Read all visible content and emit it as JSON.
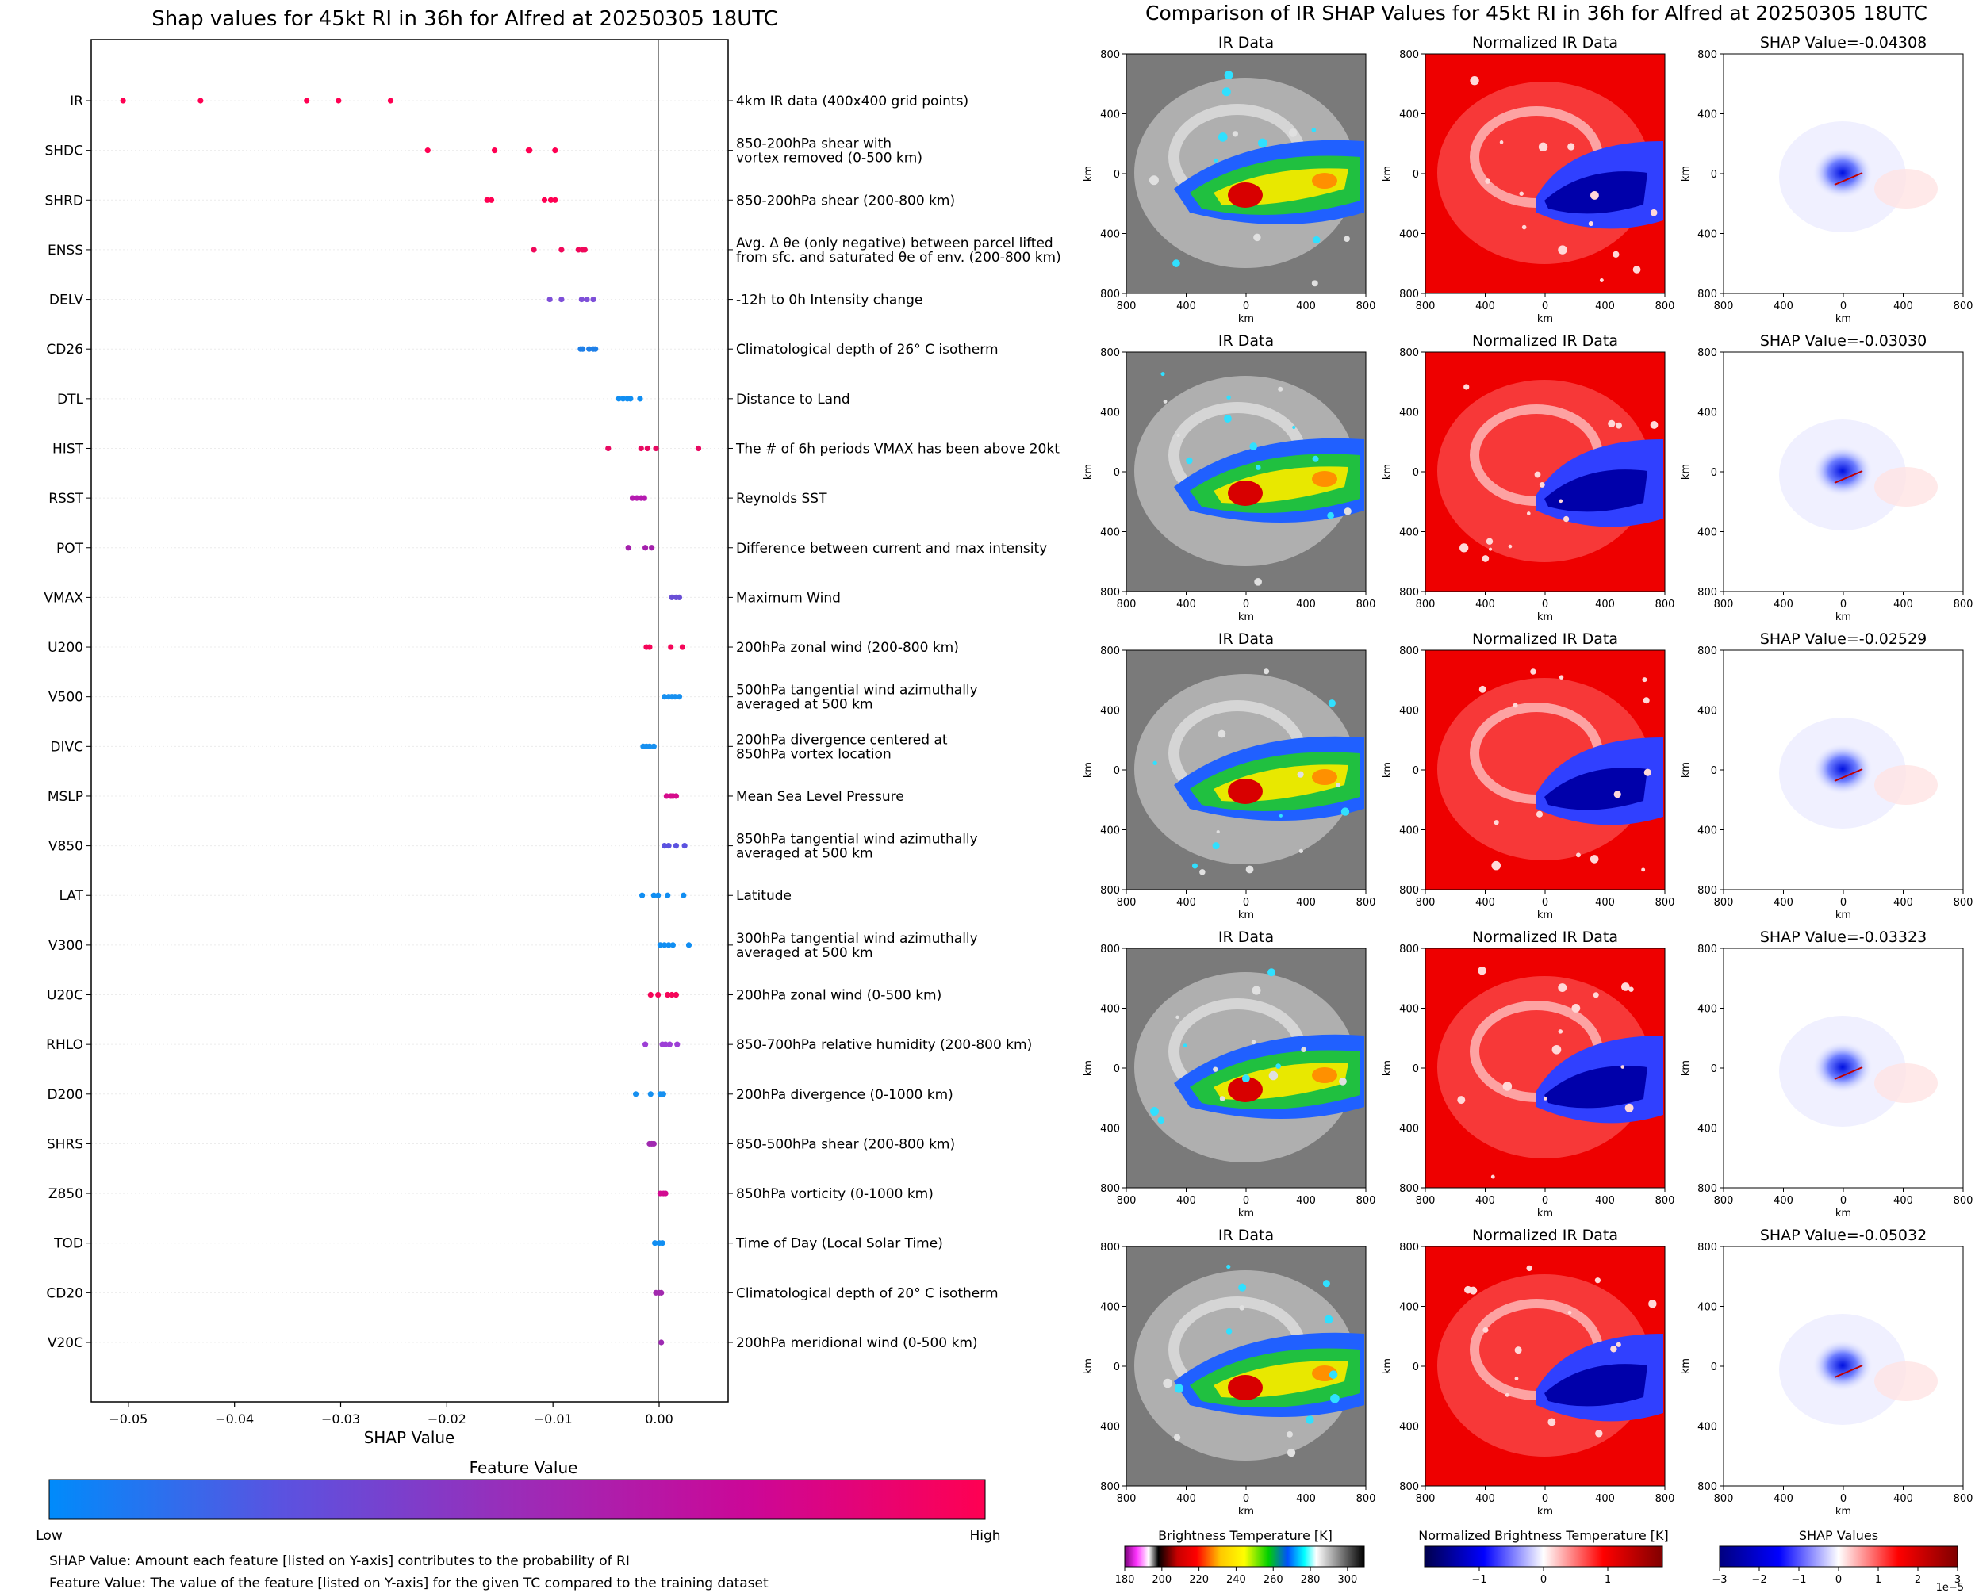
{
  "left_panel": {
    "title": "Shap values for 45kt RI in 36h for Alfred at 20250305 18UTC",
    "xlabel": "SHAP Value",
    "colorbar": {
      "title": "Feature Value",
      "low_label": "Low",
      "high_label": "High",
      "colors": [
        "#008bfb",
        "#5b52e0",
        "#9b2cb8",
        "#cc0797",
        "#ff0052"
      ]
    },
    "footnotes": [
      "SHAP Value: Amount each feature [listed on Y-axis] contributes to the probability of RI",
      "Feature Value: The value of the feature [listed on Y-axis] for the given TC compared to the training dataset"
    ]
  },
  "right_panel": {
    "title": "Comparison of IR SHAP Values for 45kt RI in 36h for Alfred at 20250305 18UTC",
    "col_titles": [
      "IR Data",
      "Normalized IR Data"
    ],
    "shap_title_prefix": "SHAP Value=",
    "shap_values": [
      "-0.04308",
      "-0.03030",
      "-0.02529",
      "-0.03323",
      "-0.05032"
    ],
    "axis_label": "km",
    "tick_labels": [
      "800",
      "400",
      "0",
      "400",
      "800"
    ],
    "colorbars": [
      {
        "title": "Brightness Temperature [K]",
        "ticks": [
          "180",
          "200",
          "220",
          "240",
          "260",
          "280",
          "300"
        ]
      },
      {
        "title": "Normalized Brightness Temperature [K]",
        "ticks": [
          "−1",
          "0",
          "1"
        ]
      },
      {
        "title": "SHAP Values",
        "ticks": [
          "−3",
          "−2",
          "−1",
          "0",
          "1",
          "2",
          "3"
        ],
        "exponent": "1e−5"
      }
    ]
  },
  "chart_data": {
    "type": "scatter",
    "subtype": "beeswarm",
    "title": "Shap values for 45kt RI in 36h for Alfred at 20250305 18UTC",
    "xlabel": "SHAP Value",
    "xlim": [
      -0.0535,
      0.0065
    ],
    "xticks": [
      -0.05,
      -0.04,
      -0.03,
      -0.02,
      -0.01,
      0.0
    ],
    "xtick_labels": [
      "−0.05",
      "−0.04",
      "−0.03",
      "−0.02",
      "−0.01",
      "0.00"
    ],
    "features": [
      {
        "name": "IR",
        "desc": [
          "4km IR data (400x400 grid points)"
        ],
        "color": "#ff0052",
        "values": [
          -0.0505,
          -0.0432,
          -0.0332,
          -0.0302,
          -0.0253
        ]
      },
      {
        "name": "SHDC",
        "desc": [
          "850-200hPa shear with",
          "vortex removed (0-500 km)"
        ],
        "color": "#ff0052",
        "values": [
          -0.0218,
          -0.0155,
          -0.0123,
          -0.0122,
          -0.0098
        ]
      },
      {
        "name": "SHRD",
        "desc": [
          "850-200hPa shear (200-800 km)"
        ],
        "color": "#ff0052",
        "values": [
          -0.0162,
          -0.0158,
          -0.0108,
          -0.0102,
          -0.0098
        ]
      },
      {
        "name": "ENSS",
        "desc": [
          "Avg. Δ θe (only negative) between parcel lifted",
          "from sfc. and saturated θe of env. (200-800 km)"
        ],
        "color": "#f0085a",
        "values": [
          -0.0118,
          -0.0092,
          -0.0076,
          -0.0072,
          -0.007
        ]
      },
      {
        "name": "DELV",
        "desc": [
          "-12h to 0h Intensity change"
        ],
        "color": "#7e4fd8",
        "values": [
          -0.0103,
          -0.0092,
          -0.0073,
          -0.0068,
          -0.0062
        ]
      },
      {
        "name": "CD26",
        "desc": [
          "Climatological depth of 26° C isotherm"
        ],
        "color": "#1e7fe8",
        "values": [
          -0.0074,
          -0.0072,
          -0.0066,
          -0.0062,
          -0.006
        ]
      },
      {
        "name": "DTL",
        "desc": [
          "Distance to Land"
        ],
        "color": "#118ef2",
        "values": [
          -0.0038,
          -0.0034,
          -0.003,
          -0.0027,
          -0.0018
        ]
      },
      {
        "name": "HIST",
        "desc": [
          "The # of 6h periods VMAX has been above 20kt"
        ],
        "color": "#e80a62",
        "values": [
          -0.0048,
          -0.0017,
          -0.0011,
          -0.0003,
          0.0037
        ]
      },
      {
        "name": "RSST",
        "desc": [
          "Reynolds SST"
        ],
        "color": "#b51ab0",
        "values": [
          -0.0025,
          -0.0021,
          -0.0017,
          -0.0014
        ]
      },
      {
        "name": "POT",
        "desc": [
          "Difference between current and max intensity"
        ],
        "color": "#a420ac",
        "values": [
          -0.0029,
          -0.0013,
          -0.0007
        ]
      },
      {
        "name": "VMAX",
        "desc": [
          "Maximum Wind"
        ],
        "color": "#6a4fd6",
        "values": [
          0.0012,
          0.0016,
          0.0019
        ]
      },
      {
        "name": "U200",
        "desc": [
          "200hPa zonal wind (200-800 km)"
        ],
        "color": "#f50659",
        "values": [
          -0.0012,
          -0.0009,
          0.0011,
          0.0022
        ]
      },
      {
        "name": "V500",
        "desc": [
          "500hPa tangential wind azimuthally",
          "averaged at 500 km"
        ],
        "color": "#1790f0",
        "values": [
          0.0005,
          0.0009,
          0.0012,
          0.0015,
          0.0019
        ]
      },
      {
        "name": "DIVC",
        "desc": [
          "200hPa divergence centered at",
          "850hPa vortex location"
        ],
        "color": "#1790f0",
        "values": [
          -0.0015,
          -0.0012,
          -0.0009,
          -0.0005
        ]
      },
      {
        "name": "MSLP",
        "desc": [
          "Mean Sea Level Pressure"
        ],
        "color": "#d60b8c",
        "values": [
          0.0007,
          0.0011,
          0.0013,
          0.0016
        ]
      },
      {
        "name": "V850",
        "desc": [
          "850hPa tangential wind azimuthally",
          "averaged at 500 km"
        ],
        "color": "#5b52e0",
        "values": [
          0.0005,
          0.0009,
          0.0016,
          0.0024
        ]
      },
      {
        "name": "LAT",
        "desc": [
          "Latitude"
        ],
        "color": "#118ef2",
        "values": [
          -0.0016,
          -0.0005,
          -0.0001,
          0.0008,
          0.0023
        ]
      },
      {
        "name": "V300",
        "desc": [
          "300hPa tangential wind azimuthally",
          "averaged at 500 km"
        ],
        "color": "#118ef2",
        "values": [
          0.0001,
          0.0005,
          0.0009,
          0.0013,
          0.0028
        ]
      },
      {
        "name": "U20C",
        "desc": [
          "200hPa zonal wind (0-500 km)"
        ],
        "color": "#f50659",
        "values": [
          -0.0008,
          -0.0001,
          0.0008,
          0.0012,
          0.0016
        ]
      },
      {
        "name": "RHLO",
        "desc": [
          "850-700hPa relative humidity (200-800 km)"
        ],
        "color": "#9d3fd6",
        "values": [
          -0.0013,
          0.0003,
          0.0006,
          0.001,
          0.0017
        ]
      },
      {
        "name": "D200",
        "desc": [
          "200hPa divergence (0-1000 km)"
        ],
        "color": "#1790f0",
        "values": [
          -0.0022,
          -0.0008,
          0.0001,
          0.0004
        ]
      },
      {
        "name": "SHRS",
        "desc": [
          "850-500hPa shear (200-800 km)"
        ],
        "color": "#a02ab0",
        "values": [
          -0.0009,
          -0.0007,
          -0.0005
        ]
      },
      {
        "name": "Z850",
        "desc": [
          "850hPa vorticity (0-1000 km)"
        ],
        "color": "#d20b90",
        "values": [
          0.0001,
          0.0004,
          0.0006
        ]
      },
      {
        "name": "TOD",
        "desc": [
          "Time of Day (Local Solar Time)"
        ],
        "color": "#118ef2",
        "values": [
          -0.0004,
          0.0,
          0.0003
        ]
      },
      {
        "name": "CD20",
        "desc": [
          "Climatological depth of 20° C isotherm"
        ],
        "color": "#a22aae",
        "values": [
          -0.0003,
          0.0,
          0.0002
        ]
      },
      {
        "name": "V20C",
        "desc": [
          "200hPa meridional wind (0-500 km)"
        ],
        "color": "#9d2ab2",
        "values": [
          0.0002
        ]
      }
    ]
  }
}
